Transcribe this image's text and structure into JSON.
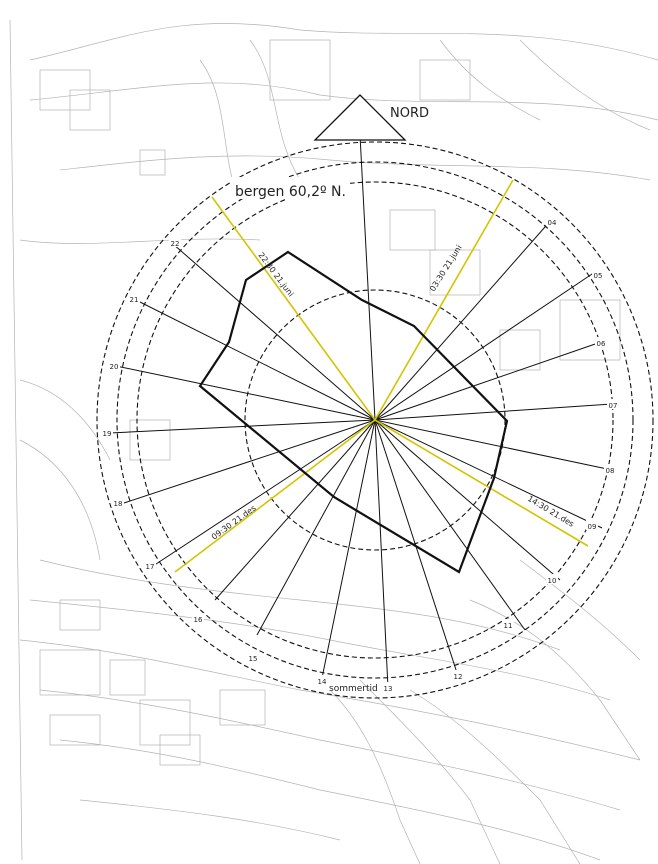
{
  "north_label": "NORD",
  "location_label": "bergen 60,2º N.",
  "season_label": "sommertid",
  "sun_labels": {
    "summer_morning": "03:30 21.juni",
    "summer_evening": "22:30 21.juni",
    "winter_morning": "09:30 21.des",
    "winter_evening": "14:30 21.des"
  },
  "hour_labels": [
    "04",
    "05",
    "06",
    "07",
    "08",
    "09",
    "10",
    "11",
    "12",
    "13",
    "14",
    "15",
    "16",
    "17",
    "18",
    "19",
    "20",
    "21",
    "22"
  ],
  "colors": {
    "line": "#111111",
    "sun_path": "#d4c400",
    "map": "#9a9a9a"
  }
}
